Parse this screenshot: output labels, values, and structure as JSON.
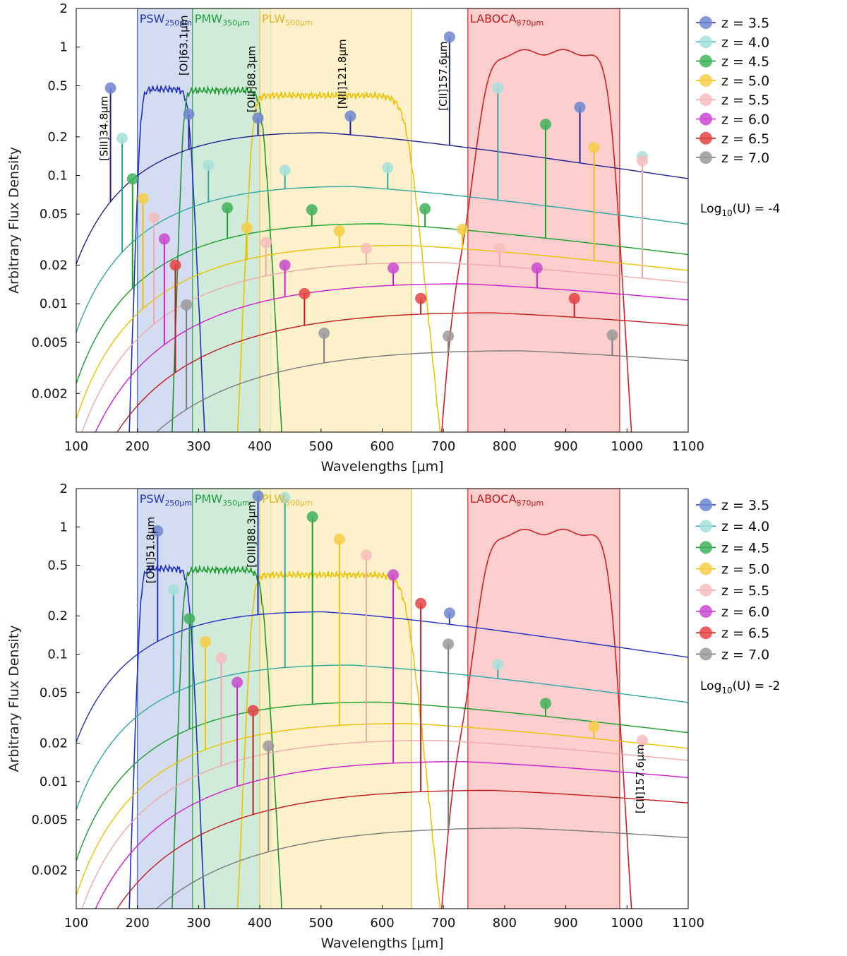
{
  "chart_data": [
    {
      "type": "line",
      "panel": "top",
      "xlabel": "Wavelengths [μm]",
      "ylabel": "Arbitrary Flux Density",
      "xlim": [
        100,
        1100
      ],
      "ylim": [
        0.001,
        2
      ],
      "yscale": "log",
      "xticks": [
        100,
        200,
        300,
        400,
        500,
        600,
        700,
        800,
        900,
        1000,
        1100
      ],
      "yticks": [
        {
          "v": 2,
          "label": "2"
        },
        {
          "v": 1,
          "label": "1"
        },
        {
          "v": 0.5,
          "label": "0.5"
        },
        {
          "v": 0.2,
          "label": "0.2"
        },
        {
          "v": 0.1,
          "label": "0.1"
        },
        {
          "v": 0.05,
          "label": "0.05"
        },
        {
          "v": 0.02,
          "label": "0.02"
        },
        {
          "v": 0.01,
          "label": "0.01"
        },
        {
          "v": 0.005,
          "label": "0.005"
        },
        {
          "v": 0.002,
          "label": "0.002"
        }
      ],
      "annotation": {
        "pre": "Log",
        "sub": "10",
        "post": "(U) = -4"
      },
      "bands": [
        {
          "name": "PSW",
          "sub": "250μm",
          "range": [
            200,
            290
          ],
          "fill": "#cdd6ee",
          "stroke": "#4a6fc9",
          "text_color": "#2230c0"
        },
        {
          "name": "PMW",
          "sub": "350μm",
          "range": [
            290,
            418
          ],
          "fill": "#c9e8d4",
          "stroke": "#4fae6e",
          "text_color": "#1f9a3c"
        },
        {
          "name": "PLW",
          "sub": "500μm",
          "range": [
            400,
            648
          ],
          "fill": "#fdeec2",
          "stroke": "#e8c05a",
          "text_color": "#e0b42a"
        },
        {
          "name": "LABOCA",
          "sub": "870μm",
          "range": [
            740,
            988
          ],
          "fill": "#fbc5c5",
          "stroke": "#d83838",
          "text_color": "#c01818"
        }
      ],
      "line_labels": [
        {
          "text": "[SiII]34.8μm",
          "x": 156,
          "y": 0.13
        },
        {
          "text": "[OI]63.1μm",
          "x": 286,
          "y": 0.6
        },
        {
          "text": "[OIII]88.3μm",
          "x": 397,
          "y": 0.31
        },
        {
          "text": "[NII]121.8μm",
          "x": 545,
          "y": 0.33
        },
        {
          "text": "[CII]157.6μm",
          "x": 710,
          "y": 0.32
        }
      ],
      "series": [
        {
          "name": "z = 3.5",
          "z": "3.5",
          "color": "#20208f",
          "marker": "#6d86cf",
          "peak": 0.215,
          "lines": [
            {
              "x": 156,
              "peak": 0.48
            },
            {
              "x": 284,
              "peak": 0.3
            },
            {
              "x": 397,
              "peak": 0.28
            },
            {
              "x": 548,
              "peak": 0.29
            },
            {
              "x": 710,
              "peak": 1.2
            },
            {
              "x": 923,
              "peak": 0.34
            }
          ]
        },
        {
          "name": "z = 4.0",
          "z": "4.0",
          "color": "#2fa7a3",
          "marker": "#a4e0da",
          "peak": 0.082,
          "lines": [
            {
              "x": 175,
              "peak": 0.195
            },
            {
              "x": 316,
              "peak": 0.12
            },
            {
              "x": 441,
              "peak": 0.11
            },
            {
              "x": 609,
              "peak": 0.115
            },
            {
              "x": 789,
              "peak": 0.48
            },
            {
              "x": 1025,
              "peak": 0.14
            }
          ]
        },
        {
          "name": "z = 4.5",
          "z": "4.5",
          "color": "#18a02a",
          "marker": "#3fb15b",
          "peak": 0.042,
          "lines": [
            {
              "x": 192,
              "peak": 0.094
            },
            {
              "x": 347,
              "peak": 0.056
            },
            {
              "x": 485,
              "peak": 0.054
            },
            {
              "x": 670,
              "peak": 0.055
            },
            {
              "x": 867,
              "peak": 0.25
            }
          ]
        },
        {
          "name": "z = 5.0",
          "z": "5.0",
          "color": "#ecc200",
          "marker": "#f5cd45",
          "peak": 0.0285,
          "lines": [
            {
              "x": 209,
              "peak": 0.066
            },
            {
              "x": 379,
              "peak": 0.039
            },
            {
              "x": 530,
              "peak": 0.037
            },
            {
              "x": 731,
              "peak": 0.038
            },
            {
              "x": 946,
              "peak": 0.165
            }
          ]
        },
        {
          "name": "z = 5.5",
          "z": "5.5",
          "color": "#f0a8a8",
          "marker": "#f7bcbc",
          "peak": 0.021,
          "lines": [
            {
              "x": 227,
              "peak": 0.047
            },
            {
              "x": 410,
              "peak": 0.03
            },
            {
              "x": 574,
              "peak": 0.027
            },
            {
              "x": 792,
              "peak": 0.027
            },
            {
              "x": 1025,
              "peak": 0.13
            }
          ]
        },
        {
          "name": "z = 6.0",
          "z": "6.0",
          "color": "#d11bd1",
          "marker": "#c94ad0",
          "peak": 0.0143,
          "lines": [
            {
              "x": 244,
              "peak": 0.032
            },
            {
              "x": 441,
              "peak": 0.02
            },
            {
              "x": 618,
              "peak": 0.019
            },
            {
              "x": 853,
              "peak": 0.019
            }
          ]
        },
        {
          "name": "z = 6.5",
          "z": "6.5",
          "color": "#c41a1a",
          "marker": "#e34343",
          "peak": 0.0085,
          "lines": [
            {
              "x": 262,
              "peak": 0.02
            },
            {
              "x": 473,
              "peak": 0.012
            },
            {
              "x": 663,
              "peak": 0.011
            },
            {
              "x": 914,
              "peak": 0.011
            }
          ]
        },
        {
          "name": "z = 7.0",
          "z": "7.0",
          "color": "#7a7a7a",
          "marker": "#9a9a9a",
          "peak": 0.0043,
          "lines": [
            {
              "x": 280,
              "peak": 0.0098
            },
            {
              "x": 505,
              "peak": 0.0059
            },
            {
              "x": 708,
              "peak": 0.0056
            },
            {
              "x": 976,
              "peak": 0.0057
            }
          ]
        }
      ]
    },
    {
      "type": "line",
      "panel": "bottom",
      "xlabel": "Wavelengths [μm]",
      "ylabel": "Arbitrary Flux Density",
      "xlim": [
        100,
        1100
      ],
      "ylim": [
        0.001,
        2
      ],
      "yscale": "log",
      "xticks": [
        100,
        200,
        300,
        400,
        500,
        600,
        700,
        800,
        900,
        1000,
        1100
      ],
      "yticks": [
        {
          "v": 2,
          "label": "2"
        },
        {
          "v": 1,
          "label": "1"
        },
        {
          "v": 0.5,
          "label": "0.5"
        },
        {
          "v": 0.2,
          "label": "0.2"
        },
        {
          "v": 0.1,
          "label": "0.1"
        },
        {
          "v": 0.05,
          "label": "0.05"
        },
        {
          "v": 0.02,
          "label": "0.02"
        },
        {
          "v": 0.01,
          "label": "0.01"
        },
        {
          "v": 0.005,
          "label": "0.005"
        },
        {
          "v": 0.002,
          "label": "0.002"
        }
      ],
      "annotation": {
        "pre": "Log",
        "sub": "10",
        "post": "(U) = -2"
      },
      "bands": [
        {
          "name": "PSW",
          "sub": "250μm",
          "range": [
            200,
            290
          ],
          "fill": "#cdd6ee",
          "stroke": "#4a6fc9",
          "text_color": "#2230c0"
        },
        {
          "name": "PMW",
          "sub": "350μm",
          "range": [
            290,
            418
          ],
          "fill": "#c9e8d4",
          "stroke": "#4fae6e",
          "text_color": "#1f9a3c"
        },
        {
          "name": "PLW",
          "sub": "500μm",
          "range": [
            400,
            648
          ],
          "fill": "#fdeec2",
          "stroke": "#e8c05a",
          "text_color": "#e0b42a"
        },
        {
          "name": "LABOCA",
          "sub": "870μm",
          "range": [
            740,
            988
          ],
          "fill": "#fbc5c5",
          "stroke": "#d83838",
          "text_color": "#c01818"
        }
      ],
      "line_labels": [
        {
          "text": "[OIII]51.8μm",
          "x": 232,
          "y": 0.36
        },
        {
          "text": "[OIII]88.3μm",
          "x": 397,
          "y": 0.48
        },
        {
          "text": "[CII]157.6μm",
          "x": 1032,
          "y": 0.0056
        }
      ],
      "series": [
        {
          "name": "z = 3.5",
          "z": "3.5",
          "color": "#2030c8",
          "marker": "#6d86cf",
          "peak": 0.215,
          "lines": [
            {
              "x": 233,
              "peak": 0.93
            },
            {
              "x": 397,
              "peak": 1.75
            },
            {
              "x": 710,
              "peak": 0.21
            }
          ]
        },
        {
          "name": "z = 4.0",
          "z": "4.0",
          "color": "#2fa7a3",
          "marker": "#a4e0da",
          "peak": 0.082,
          "lines": [
            {
              "x": 259,
              "peak": 0.32
            },
            {
              "x": 441,
              "peak": 1.7
            },
            {
              "x": 789,
              "peak": 0.083
            }
          ]
        },
        {
          "name": "z = 4.5",
          "z": "4.5",
          "color": "#18a02a",
          "marker": "#3fb15b",
          "peak": 0.042,
          "lines": [
            {
              "x": 285,
              "peak": 0.19
            },
            {
              "x": 486,
              "peak": 1.2
            },
            {
              "x": 867,
              "peak": 0.041
            }
          ]
        },
        {
          "name": "z = 5.0",
          "z": "5.0",
          "color": "#ecc200",
          "marker": "#f5cd45",
          "peak": 0.0285,
          "lines": [
            {
              "x": 311,
              "peak": 0.125
            },
            {
              "x": 530,
              "peak": 0.8
            },
            {
              "x": 946,
              "peak": 0.027
            }
          ]
        },
        {
          "name": "z = 5.5",
          "z": "5.5",
          "color": "#f0a8a8",
          "marker": "#f7bcbc",
          "peak": 0.021,
          "lines": [
            {
              "x": 337,
              "peak": 0.093
            },
            {
              "x": 574,
              "peak": 0.6
            },
            {
              "x": 1025,
              "peak": 0.021
            }
          ]
        },
        {
          "name": "z = 6.0",
          "z": "6.0",
          "color": "#d11bd1",
          "marker": "#c94ad0",
          "peak": 0.0143,
          "lines": [
            {
              "x": 363,
              "peak": 0.06
            },
            {
              "x": 618,
              "peak": 0.42
            }
          ]
        },
        {
          "name": "z = 6.5",
          "z": "6.5",
          "color": "#c41a1a",
          "marker": "#e34343",
          "peak": 0.0085,
          "lines": [
            {
              "x": 389,
              "peak": 0.036
            },
            {
              "x": 663,
              "peak": 0.25
            }
          ]
        },
        {
          "name": "z = 7.0",
          "z": "7.0",
          "color": "#7a7a7a",
          "marker": "#9a9a9a",
          "peak": 0.0043,
          "lines": [
            {
              "x": 414,
              "peak": 0.019
            },
            {
              "x": 708,
              "peak": 0.12
            }
          ]
        }
      ]
    }
  ]
}
